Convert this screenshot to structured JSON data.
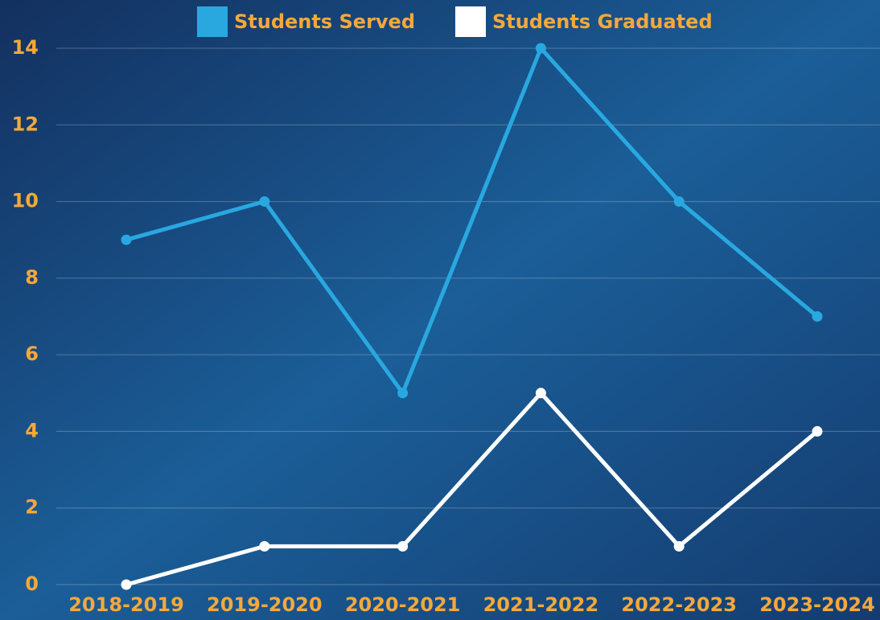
{
  "chart_data": {
    "type": "line",
    "categories": [
      "2018-2019",
      "2019-2020",
      "2020-2021",
      "2021-2022",
      "2022-2023",
      "2023-2024"
    ],
    "series": [
      {
        "name": "Students Served",
        "color": "#29a8e0",
        "values": [
          9,
          10,
          5,
          14,
          10,
          7
        ]
      },
      {
        "name": "Students Graduated",
        "color": "#ffffff",
        "values": [
          0,
          1,
          1,
          5,
          1,
          4
        ]
      }
    ],
    "ylim": [
      0,
      14
    ],
    "yticks": [
      0,
      2,
      4,
      6,
      8,
      10,
      12,
      14
    ],
    "grid": true,
    "legend": "top"
  }
}
